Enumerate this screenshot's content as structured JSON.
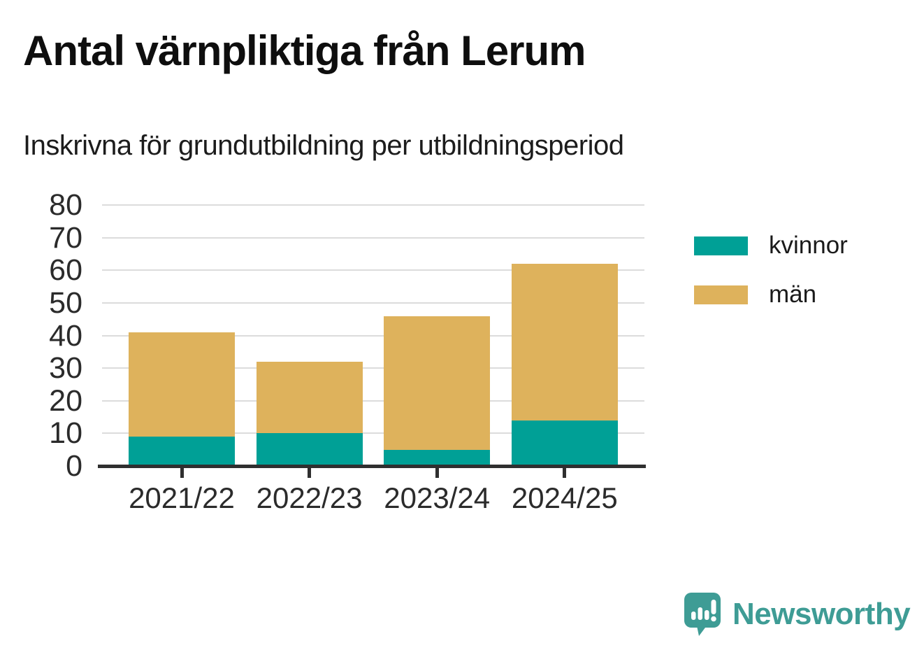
{
  "header": {
    "title": "Antal värnpliktiga från Lerum",
    "subtitle": "Inskrivna för grundutbildning per utbildningsperiod"
  },
  "chart_data": {
    "type": "bar",
    "stacked": true,
    "title": "Antal värnpliktiga från Lerum",
    "subtitle": "Inskrivna för grundutbildning per utbildningsperiod",
    "categories": [
      "2021/22",
      "2022/23",
      "2023/24",
      "2024/25"
    ],
    "series": [
      {
        "name": "kvinnor",
        "color": "#00A096",
        "values": [
          9,
          10,
          5,
          14
        ]
      },
      {
        "name": "män",
        "color": "#DEB25C",
        "values": [
          32,
          22,
          41,
          48
        ]
      }
    ],
    "stack_totals": [
      41,
      32,
      46,
      62
    ],
    "xlabel": "",
    "ylabel": "",
    "ylim": [
      0,
      80
    ],
    "yticks": [
      0,
      10,
      20,
      30,
      40,
      50,
      60,
      70,
      80
    ],
    "grid": true,
    "legend_position": "right"
  },
  "legend": {
    "items": [
      {
        "label": "kvinnor",
        "color": "#00A096"
      },
      {
        "label": "män",
        "color": "#DEB25C"
      }
    ]
  },
  "branding": {
    "logo_text": "Newsworthy",
    "logo_color": "#3E9C95",
    "logo_icon": "newsworthy-speech-bubble-bar-chart-icon"
  },
  "colors": {
    "axis_line": "#2F2F2F",
    "gridline": "#DCDCDC",
    "tick_label": "#2B2B2B",
    "background": "#FFFFFF"
  }
}
